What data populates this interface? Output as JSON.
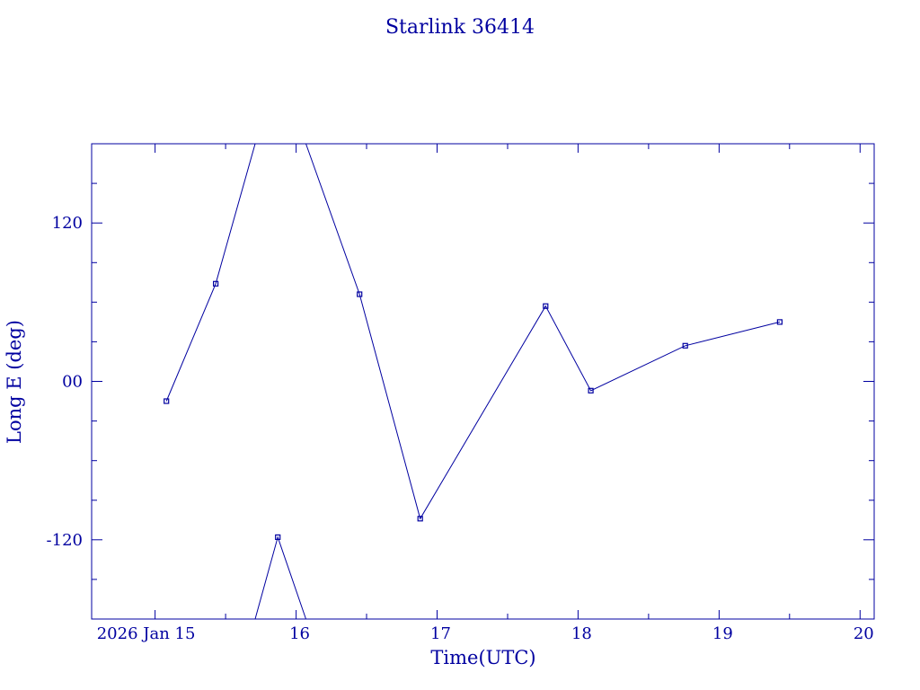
{
  "colors": {
    "ink": "#0000a0",
    "background": "#ffffff"
  },
  "chart_data": {
    "type": "line",
    "title": "Starlink 36414",
    "xlabel": "Time(UTC)",
    "ylabel": "Long E (deg)",
    "x_unit": "days (UTC), 2026 Jan",
    "xlim": [
      14.55,
      20.1
    ],
    "ylim": [
      -180,
      180
    ],
    "x_ticks": [
      {
        "x": 15,
        "label": "2026 Jan 15"
      },
      {
        "x": 16,
        "label": "16"
      },
      {
        "x": 17,
        "label": "17"
      },
      {
        "x": 18,
        "label": "18"
      },
      {
        "x": 19,
        "label": "19"
      },
      {
        "x": 20,
        "label": "20"
      }
    ],
    "y_ticks": [
      {
        "y": 120,
        "label": "120"
      },
      {
        "y": 0,
        "label": "00"
      },
      {
        "y": -120,
        "label": "-120"
      }
    ],
    "grid": false,
    "legend": "none",
    "series": [
      {
        "points": [
          {
            "x": 15.08,
            "y": -15
          },
          {
            "x": 15.43,
            "y": 74
          },
          {
            "x": 15.71,
            "y": 180
          },
          {
            "x": 15.71,
            "y": -180
          },
          {
            "x": 15.87,
            "y": -118
          },
          {
            "x": 16.07,
            "y": -180
          },
          {
            "x": 16.07,
            "y": 180
          },
          {
            "x": 16.45,
            "y": 66
          },
          {
            "x": 16.88,
            "y": -104
          },
          {
            "x": 17.77,
            "y": 57
          },
          {
            "x": 18.09,
            "y": -7
          },
          {
            "x": 18.76,
            "y": 27
          },
          {
            "x": 19.43,
            "y": 45
          }
        ],
        "markers": [
          {
            "x": 15.08,
            "y": -15
          },
          {
            "x": 15.43,
            "y": 74
          },
          {
            "x": 15.87,
            "y": -118
          },
          {
            "x": 16.45,
            "y": 66
          },
          {
            "x": 16.88,
            "y": -104
          },
          {
            "x": 17.77,
            "y": 57
          },
          {
            "x": 18.09,
            "y": -7
          },
          {
            "x": 18.76,
            "y": 27
          },
          {
            "x": 19.43,
            "y": 45
          }
        ]
      }
    ]
  }
}
